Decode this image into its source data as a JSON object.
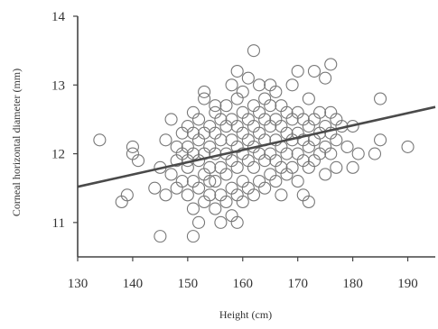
{
  "chart_data": {
    "type": "scatter",
    "xlabel": "Height (cm)",
    "ylabel": "Corneal horizontal diameter (mm)",
    "xlim": [
      130,
      195
    ],
    "ylim": [
      10.5,
      14
    ],
    "x_ticks": [
      130,
      140,
      150,
      160,
      170,
      180,
      190
    ],
    "y_ticks": [
      11,
      12,
      13,
      14
    ],
    "grid": false,
    "marker": "open-circle",
    "colors": {
      "marker": "#777777",
      "trend": "#4a4a4a",
      "axis": "#444444"
    },
    "trend_line": {
      "x": [
        130,
        195
      ],
      "y": [
        11.52,
        12.68
      ]
    },
    "series": [
      {
        "points": [
          [
            134,
            12.2
          ],
          [
            138,
            11.3
          ],
          [
            139,
            11.4
          ],
          [
            140,
            12.1
          ],
          [
            140,
            12.0
          ],
          [
            141,
            11.9
          ],
          [
            144,
            11.5
          ],
          [
            145,
            10.8
          ],
          [
            145,
            11.8
          ],
          [
            146,
            11.4
          ],
          [
            146,
            12.2
          ],
          [
            147,
            11.7
          ],
          [
            147,
            12.5
          ],
          [
            148,
            11.5
          ],
          [
            148,
            12.1
          ],
          [
            148,
            11.9
          ],
          [
            149,
            11.6
          ],
          [
            149,
            12.3
          ],
          [
            149,
            12.0
          ],
          [
            150,
            11.4
          ],
          [
            150,
            11.8
          ],
          [
            150,
            12.1
          ],
          [
            150,
            12.4
          ],
          [
            150,
            11.9
          ],
          [
            151,
            10.8
          ],
          [
            151,
            11.2
          ],
          [
            151,
            11.6
          ],
          [
            151,
            12.0
          ],
          [
            151,
            12.3
          ],
          [
            151,
            12.6
          ],
          [
            152,
            11.0
          ],
          [
            152,
            11.5
          ],
          [
            152,
            11.9
          ],
          [
            152,
            12.2
          ],
          [
            152,
            12.5
          ],
          [
            153,
            11.3
          ],
          [
            153,
            11.7
          ],
          [
            153,
            12.0
          ],
          [
            153,
            12.3
          ],
          [
            153,
            12.8
          ],
          [
            153,
            12.9
          ],
          [
            154,
            11.4
          ],
          [
            154,
            11.8
          ],
          [
            154,
            12.1
          ],
          [
            154,
            12.4
          ],
          [
            154,
            11.6
          ],
          [
            155,
            11.2
          ],
          [
            155,
            11.6
          ],
          [
            155,
            12.0
          ],
          [
            155,
            12.3
          ],
          [
            155,
            12.6
          ],
          [
            155,
            12.7
          ],
          [
            156,
            11.0
          ],
          [
            156,
            11.4
          ],
          [
            156,
            11.8
          ],
          [
            156,
            12.2
          ],
          [
            156,
            12.5
          ],
          [
            157,
            11.3
          ],
          [
            157,
            11.7
          ],
          [
            157,
            12.0
          ],
          [
            157,
            12.4
          ],
          [
            157,
            12.7
          ],
          [
            158,
            11.1
          ],
          [
            158,
            11.5
          ],
          [
            158,
            11.9
          ],
          [
            158,
            12.2
          ],
          [
            158,
            12.5
          ],
          [
            158,
            13.0
          ],
          [
            159,
            11.0
          ],
          [
            159,
            11.4
          ],
          [
            159,
            11.8
          ],
          [
            159,
            12.1
          ],
          [
            159,
            12.4
          ],
          [
            159,
            12.8
          ],
          [
            159,
            13.2
          ],
          [
            160,
            11.3
          ],
          [
            160,
            11.6
          ],
          [
            160,
            12.0
          ],
          [
            160,
            12.3
          ],
          [
            160,
            12.6
          ],
          [
            160,
            12.9
          ],
          [
            161,
            11.5
          ],
          [
            161,
            11.9
          ],
          [
            161,
            12.2
          ],
          [
            161,
            12.5
          ],
          [
            161,
            13.1
          ],
          [
            162,
            11.4
          ],
          [
            162,
            11.8
          ],
          [
            162,
            12.1
          ],
          [
            162,
            12.4
          ],
          [
            162,
            12.7
          ],
          [
            162,
            13.5
          ],
          [
            163,
            11.6
          ],
          [
            163,
            12.0
          ],
          [
            163,
            12.3
          ],
          [
            163,
            12.6
          ],
          [
            163,
            13.0
          ],
          [
            164,
            11.5
          ],
          [
            164,
            11.9
          ],
          [
            164,
            12.2
          ],
          [
            164,
            12.5
          ],
          [
            164,
            12.8
          ],
          [
            165,
            11.7
          ],
          [
            165,
            12.0
          ],
          [
            165,
            12.4
          ],
          [
            165,
            12.7
          ],
          [
            165,
            13.0
          ],
          [
            166,
            11.6
          ],
          [
            166,
            11.9
          ],
          [
            166,
            12.2
          ],
          [
            166,
            12.5
          ],
          [
            166,
            12.9
          ],
          [
            167,
            11.4
          ],
          [
            167,
            11.8
          ],
          [
            167,
            12.1
          ],
          [
            167,
            12.4
          ],
          [
            167,
            12.7
          ],
          [
            168,
            11.7
          ],
          [
            168,
            12.0
          ],
          [
            168,
            12.3
          ],
          [
            168,
            12.6
          ],
          [
            169,
            11.8
          ],
          [
            169,
            12.2
          ],
          [
            169,
            12.5
          ],
          [
            169,
            13.0
          ],
          [
            170,
            11.6
          ],
          [
            170,
            12.0
          ],
          [
            170,
            12.3
          ],
          [
            170,
            12.6
          ],
          [
            170,
            13.2
          ],
          [
            171,
            11.4
          ],
          [
            171,
            11.9
          ],
          [
            171,
            12.2
          ],
          [
            171,
            12.5
          ],
          [
            172,
            11.3
          ],
          [
            172,
            11.8
          ],
          [
            172,
            12.1
          ],
          [
            172,
            12.4
          ],
          [
            172,
            12.8
          ],
          [
            173,
            11.9
          ],
          [
            173,
            12.2
          ],
          [
            173,
            12.5
          ],
          [
            173,
            13.2
          ],
          [
            174,
            12.0
          ],
          [
            174,
            12.3
          ],
          [
            174,
            12.6
          ],
          [
            175,
            11.7
          ],
          [
            175,
            12.1
          ],
          [
            175,
            12.4
          ],
          [
            175,
            13.1
          ],
          [
            176,
            12.0
          ],
          [
            176,
            12.3
          ],
          [
            176,
            12.6
          ],
          [
            176,
            13.3
          ],
          [
            177,
            11.8
          ],
          [
            177,
            12.2
          ],
          [
            177,
            12.5
          ],
          [
            178,
            12.4
          ],
          [
            179,
            12.1
          ],
          [
            180,
            11.8
          ],
          [
            180,
            12.4
          ],
          [
            181,
            12.0
          ],
          [
            184,
            12.0
          ],
          [
            185,
            12.2
          ],
          [
            185,
            12.8
          ],
          [
            190,
            12.1
          ]
        ]
      }
    ]
  }
}
